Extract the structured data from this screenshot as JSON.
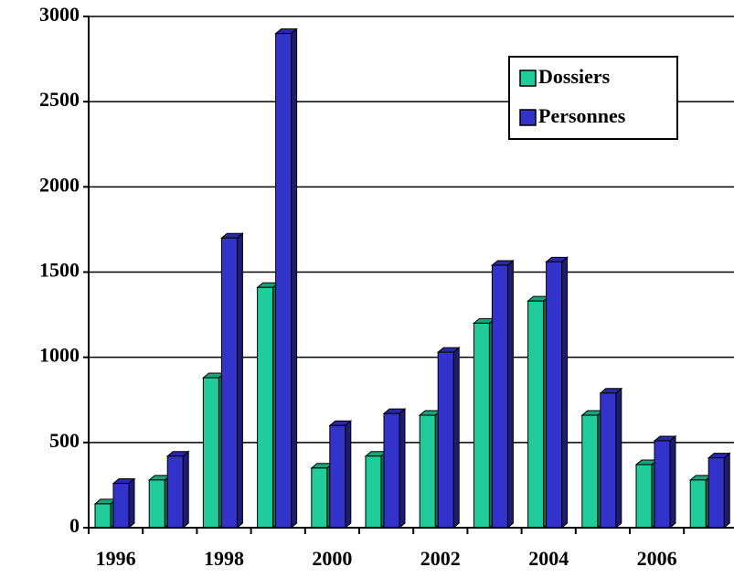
{
  "chart_data": {
    "type": "bar",
    "categories": [
      "1996",
      null,
      "1998",
      null,
      "2000",
      null,
      "2002",
      null,
      "2004",
      null,
      "2006",
      null
    ],
    "series": [
      {
        "name": "Dossiers",
        "color": "#20cc99",
        "values": [
          140,
          280,
          880,
          1410,
          350,
          420,
          660,
          1200,
          1330,
          660,
          370,
          280
        ]
      },
      {
        "name": "Personnes",
        "color": "#3333cc",
        "values": [
          260,
          420,
          1700,
          2900,
          600,
          670,
          1030,
          1540,
          1560,
          790,
          510,
          410
        ]
      }
    ],
    "ylim": [
      0,
      3000
    ],
    "yticks": [
      0,
      500,
      1000,
      1500,
      2000,
      2500,
      3000
    ],
    "grid": true,
    "legend": "upper right"
  }
}
